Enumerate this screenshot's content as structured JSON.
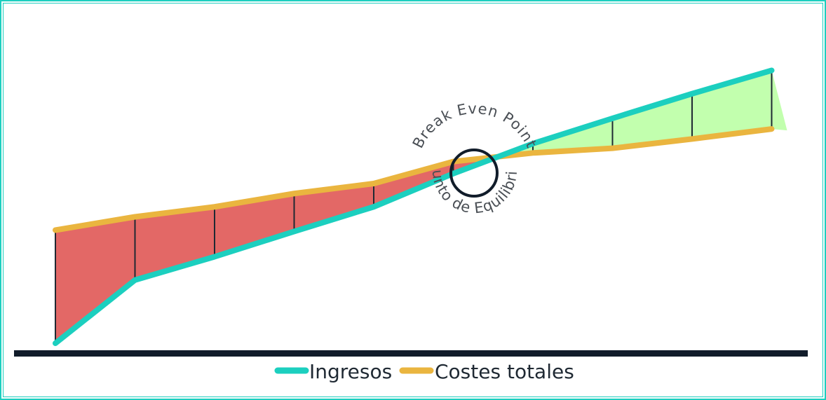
{
  "chart_data": {
    "type": "line",
    "x": [
      0,
      1,
      2,
      3,
      4,
      5,
      6,
      7,
      8,
      9
    ],
    "series": [
      {
        "name": "Ingresos",
        "color": "#1ccfbf",
        "values": [
          0,
          95,
          130,
          168,
          205,
          255,
          300,
          338,
          375,
          410
        ]
      },
      {
        "name": "Costes totales",
        "color": "#eab53f",
        "values": [
          170,
          190,
          205,
          225,
          240,
          273,
          286,
          293,
          307,
          322
        ]
      }
    ],
    "loss_color": "#e36866",
    "profit_color": "#c2ffae",
    "annotations": {
      "top": "Break Even Point",
      "bottom": "Punto de Equilibrio"
    },
    "legend": "bottom-center",
    "grid": false
  }
}
